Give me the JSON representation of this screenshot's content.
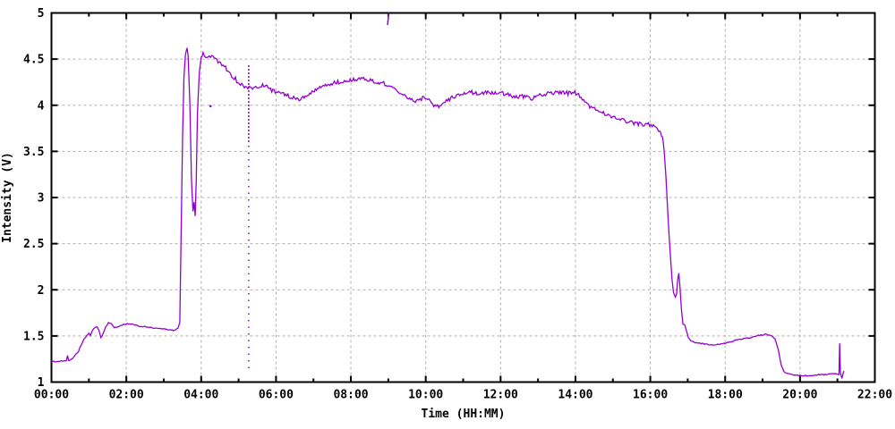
{
  "chart_data": {
    "type": "line",
    "title": "",
    "xlabel": "Time (HH:MM)",
    "ylabel": "Intensity (V)",
    "xlim_hours": [
      0,
      22
    ],
    "ylim": [
      1,
      5
    ],
    "x_major_ticks": [
      {
        "hour": 0,
        "label": "00:00"
      },
      {
        "hour": 2,
        "label": "02:00"
      },
      {
        "hour": 4,
        "label": "04:00"
      },
      {
        "hour": 6,
        "label": "06:00"
      },
      {
        "hour": 8,
        "label": "08:00"
      },
      {
        "hour": 10,
        "label": "10:00"
      },
      {
        "hour": 12,
        "label": "12:00"
      },
      {
        "hour": 14,
        "label": "14:00"
      },
      {
        "hour": 16,
        "label": "16:00"
      },
      {
        "hour": 18,
        "label": "18:00"
      },
      {
        "hour": 20,
        "label": "20:00"
      },
      {
        "hour": 22,
        "label": "22:00"
      }
    ],
    "x_minor_tick_hours": [
      1,
      3,
      5,
      7,
      9,
      11,
      13,
      15,
      17,
      19,
      21
    ],
    "y_ticks": [
      {
        "value": 1,
        "label": "1"
      },
      {
        "value": 1.5,
        "label": "1.5"
      },
      {
        "value": 2,
        "label": "2"
      },
      {
        "value": 2.5,
        "label": "2.5"
      },
      {
        "value": 3,
        "label": "3"
      },
      {
        "value": 3.5,
        "label": "3.5"
      },
      {
        "value": 4,
        "label": "4"
      },
      {
        "value": 4.5,
        "label": "4.5"
      },
      {
        "value": 5,
        "label": "5"
      }
    ],
    "grid": {
      "show": true,
      "color": "#b0b0b0",
      "dash": "3,3"
    },
    "line_color": "#9400d3",
    "axis_color": "#000000",
    "legend": {
      "show": false
    },
    "series": [
      {
        "name": "intensity",
        "points": [
          [
            0.0,
            1.23
          ],
          [
            0.1,
            1.22
          ],
          [
            0.2,
            1.22
          ],
          [
            0.3,
            1.23
          ],
          [
            0.4,
            1.23
          ],
          [
            0.43,
            1.29
          ],
          [
            0.46,
            1.23
          ],
          [
            0.55,
            1.25
          ],
          [
            0.65,
            1.3
          ],
          [
            0.72,
            1.33
          ],
          [
            0.8,
            1.41
          ],
          [
            0.88,
            1.47
          ],
          [
            0.95,
            1.51
          ],
          [
            1.0,
            1.53
          ],
          [
            1.04,
            1.5
          ],
          [
            1.08,
            1.55
          ],
          [
            1.15,
            1.59
          ],
          [
            1.22,
            1.6
          ],
          [
            1.27,
            1.56
          ],
          [
            1.32,
            1.48
          ],
          [
            1.38,
            1.52
          ],
          [
            1.45,
            1.6
          ],
          [
            1.52,
            1.64
          ],
          [
            1.6,
            1.63
          ],
          [
            1.68,
            1.59
          ],
          [
            1.78,
            1.6
          ],
          [
            1.9,
            1.62
          ],
          [
            2.0,
            1.63
          ],
          [
            2.15,
            1.63
          ],
          [
            2.3,
            1.61
          ],
          [
            2.5,
            1.6
          ],
          [
            2.7,
            1.59
          ],
          [
            2.9,
            1.58
          ],
          [
            3.1,
            1.57
          ],
          [
            3.25,
            1.56
          ],
          [
            3.38,
            1.58
          ],
          [
            3.43,
            1.65
          ],
          [
            3.46,
            2.5
          ],
          [
            3.5,
            3.6
          ],
          [
            3.54,
            4.3
          ],
          [
            3.58,
            4.55
          ],
          [
            3.62,
            4.62
          ],
          [
            3.65,
            4.55
          ],
          [
            3.7,
            4.0
          ],
          [
            3.74,
            3.2
          ],
          [
            3.78,
            2.85
          ],
          [
            3.81,
            2.95
          ],
          [
            3.84,
            2.8
          ],
          [
            3.87,
            3.2
          ],
          [
            3.9,
            3.9
          ],
          [
            3.95,
            4.35
          ],
          [
            4.0,
            4.52
          ],
          [
            4.05,
            4.55
          ],
          [
            4.15,
            4.53
          ],
          [
            4.25,
            4.52
          ],
          [
            4.35,
            4.51
          ],
          [
            4.45,
            4.48
          ],
          [
            4.55,
            4.45
          ],
          [
            4.65,
            4.41
          ],
          [
            4.75,
            4.36
          ],
          [
            4.85,
            4.31
          ],
          [
            4.95,
            4.27
          ],
          [
            5.05,
            4.24
          ],
          [
            5.15,
            4.21
          ],
          [
            5.28,
            4.19
          ],
          [
            5.4,
            4.19
          ],
          [
            5.55,
            4.21
          ],
          [
            5.7,
            4.22
          ],
          [
            5.82,
            4.18
          ],
          [
            5.95,
            4.15
          ],
          [
            6.07,
            4.16
          ],
          [
            6.2,
            4.13
          ],
          [
            6.35,
            4.1
          ],
          [
            6.5,
            4.07
          ],
          [
            6.62,
            4.06
          ],
          [
            6.75,
            4.09
          ],
          [
            6.9,
            4.12
          ],
          [
            7.05,
            4.16
          ],
          [
            7.2,
            4.19
          ],
          [
            7.35,
            4.22
          ],
          [
            7.5,
            4.24
          ],
          [
            7.65,
            4.25
          ],
          [
            7.8,
            4.26
          ],
          [
            7.95,
            4.27
          ],
          [
            8.1,
            4.28
          ],
          [
            8.25,
            4.29
          ],
          [
            8.4,
            4.28
          ],
          [
            8.55,
            4.26
          ],
          [
            8.7,
            4.25
          ],
          [
            8.85,
            4.24
          ],
          [
            9.0,
            4.22
          ],
          [
            9.15,
            4.19
          ],
          [
            9.3,
            4.14
          ],
          [
            9.45,
            4.1
          ],
          [
            9.6,
            4.07
          ],
          [
            9.75,
            4.04
          ],
          [
            9.85,
            4.06
          ],
          [
            9.95,
            4.09
          ],
          [
            10.05,
            4.07
          ],
          [
            10.15,
            4.02
          ],
          [
            10.25,
            3.99
          ],
          [
            10.35,
            3.98
          ],
          [
            10.45,
            4.02
          ],
          [
            10.55,
            4.05
          ],
          [
            10.7,
            4.08
          ],
          [
            10.85,
            4.11
          ],
          [
            11.0,
            4.13
          ],
          [
            11.2,
            4.14
          ],
          [
            11.4,
            4.13
          ],
          [
            11.6,
            4.14
          ],
          [
            11.8,
            4.13
          ],
          [
            12.0,
            4.13
          ],
          [
            12.2,
            4.12
          ],
          [
            12.35,
            4.1
          ],
          [
            12.45,
            4.08
          ],
          [
            12.55,
            4.1
          ],
          [
            12.7,
            4.09
          ],
          [
            12.8,
            4.06
          ],
          [
            12.9,
            4.09
          ],
          [
            13.05,
            4.11
          ],
          [
            13.2,
            4.12
          ],
          [
            13.35,
            4.13
          ],
          [
            13.5,
            4.14
          ],
          [
            13.65,
            4.14
          ],
          [
            13.8,
            4.13
          ],
          [
            13.95,
            4.14
          ],
          [
            14.05,
            4.12
          ],
          [
            14.15,
            4.08
          ],
          [
            14.25,
            4.03
          ],
          [
            14.35,
            4.0
          ],
          [
            14.45,
            3.97
          ],
          [
            14.6,
            3.94
          ],
          [
            14.75,
            3.92
          ],
          [
            14.9,
            3.89
          ],
          [
            15.05,
            3.87
          ],
          [
            15.2,
            3.85
          ],
          [
            15.35,
            3.83
          ],
          [
            15.5,
            3.81
          ],
          [
            15.65,
            3.8
          ],
          [
            15.8,
            3.79
          ],
          [
            15.95,
            3.79
          ],
          [
            16.05,
            3.78
          ],
          [
            16.15,
            3.76
          ],
          [
            16.25,
            3.72
          ],
          [
            16.3,
            3.68
          ],
          [
            16.35,
            3.6
          ],
          [
            16.38,
            3.45
          ],
          [
            16.42,
            3.2
          ],
          [
            16.46,
            2.9
          ],
          [
            16.5,
            2.6
          ],
          [
            16.54,
            2.35
          ],
          [
            16.58,
            2.12
          ],
          [
            16.62,
            1.97
          ],
          [
            16.67,
            1.92
          ],
          [
            16.7,
            1.95
          ],
          [
            16.73,
            2.1
          ],
          [
            16.76,
            2.18
          ],
          [
            16.79,
            2.05
          ],
          [
            16.83,
            1.8
          ],
          [
            16.87,
            1.63
          ],
          [
            16.92,
            1.62
          ],
          [
            16.97,
            1.55
          ],
          [
            17.02,
            1.48
          ],
          [
            17.08,
            1.45
          ],
          [
            17.17,
            1.43
          ],
          [
            17.33,
            1.42
          ],
          [
            17.5,
            1.41
          ],
          [
            17.67,
            1.4
          ],
          [
            17.83,
            1.41
          ],
          [
            18.0,
            1.42
          ],
          [
            18.17,
            1.44
          ],
          [
            18.33,
            1.46
          ],
          [
            18.5,
            1.47
          ],
          [
            18.67,
            1.48
          ],
          [
            18.83,
            1.5
          ],
          [
            19.0,
            1.51
          ],
          [
            19.08,
            1.52
          ],
          [
            19.17,
            1.51
          ],
          [
            19.25,
            1.5
          ],
          [
            19.33,
            1.47
          ],
          [
            19.42,
            1.35
          ],
          [
            19.5,
            1.18
          ],
          [
            19.58,
            1.11
          ],
          [
            19.67,
            1.09
          ],
          [
            19.83,
            1.08
          ],
          [
            20.0,
            1.07
          ],
          [
            20.17,
            1.07
          ],
          [
            20.33,
            1.07
          ],
          [
            20.5,
            1.08
          ],
          [
            20.67,
            1.08
          ],
          [
            20.83,
            1.09
          ],
          [
            21.0,
            1.09
          ],
          [
            21.04,
            1.08
          ],
          [
            21.06,
            1.42
          ],
          [
            21.08,
            1.1
          ],
          [
            21.12,
            1.04
          ],
          [
            21.17,
            1.12
          ]
        ]
      }
    ],
    "noise_bands": [
      [
        0.0,
        3.4,
        0.005
      ],
      [
        4.0,
        5.2,
        0.027
      ],
      [
        5.2,
        16.35,
        0.022
      ],
      [
        17.05,
        21.0,
        0.005
      ]
    ],
    "artifacts": {
      "dropout_column": {
        "t": 5.27,
        "v_min": 1.15,
        "v_dense_from": 3.6,
        "v_max": 4.45
      },
      "top_spike": {
        "points": [
          [
            8.98,
            4.87
          ],
          [
            9.0,
            4.95
          ],
          [
            9.0,
            5.02
          ]
        ]
      },
      "stray_point": {
        "t": 4.25,
        "v": 3.99
      }
    }
  }
}
